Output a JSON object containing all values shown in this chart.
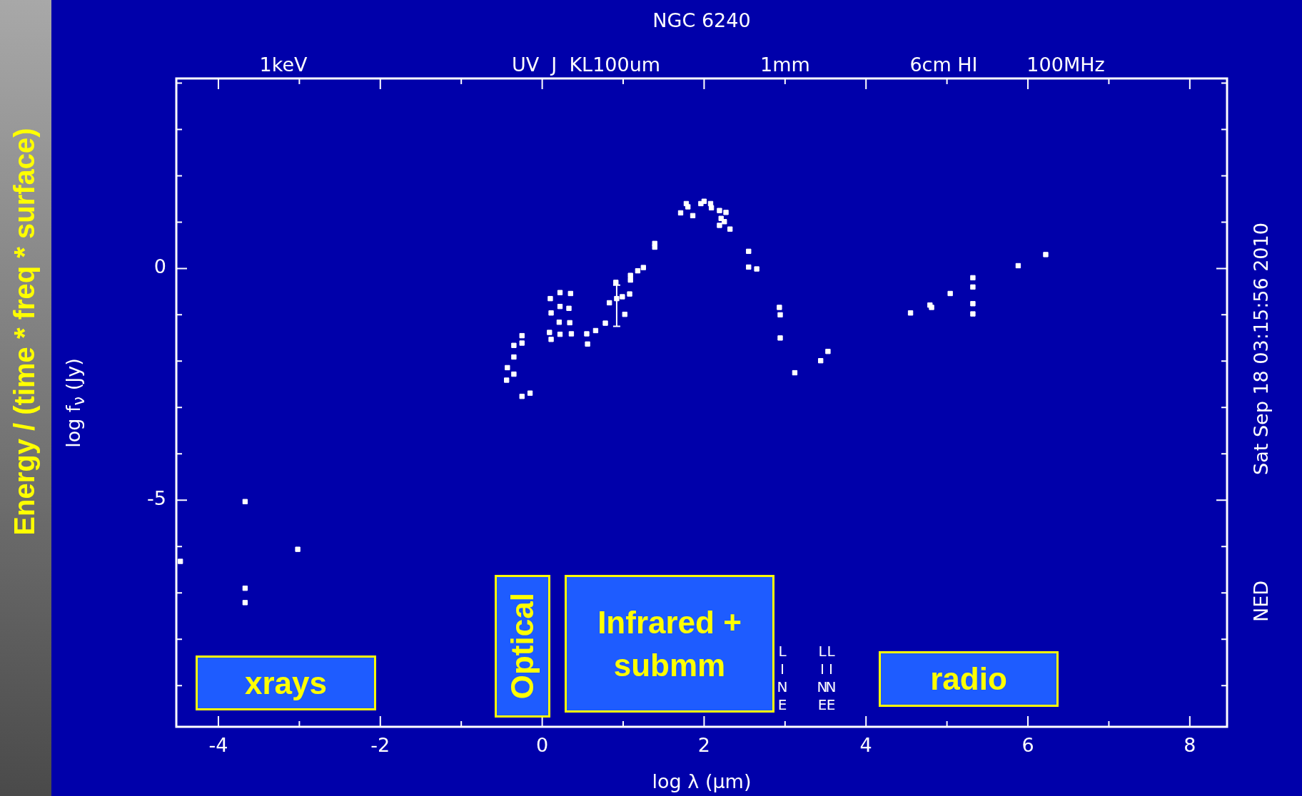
{
  "chart_data": {
    "type": "scatter",
    "title": "NGC 6240",
    "xlabel": "log λ (µm)",
    "ylabel": "log f$_{ν}$ (Jy)",
    "xlim": [
      -4.52,
      8.46
    ],
    "ylim": [
      -9.89,
      4.1
    ],
    "xticks": [
      -4,
      {
        "value": -3,
        "label": null
      },
      -2,
      {
        "value": -1,
        "label": null
      },
      0,
      {
        "value": 1,
        "label": null
      },
      2,
      {
        "value": 3,
        "label": null
      },
      4,
      {
        "value": 5,
        "label": null
      },
      6,
      {
        "value": 7,
        "label": null
      },
      8
    ],
    "yticks": [
      {
        "value": -9,
        "label": null
      },
      {
        "value": -8,
        "label": null
      },
      {
        "value": -7,
        "label": null
      },
      {
        "value": -6,
        "label": null
      },
      -5,
      {
        "value": -4,
        "label": null
      },
      {
        "value": -3,
        "label": null
      },
      {
        "value": -2,
        "label": null
      },
      {
        "value": -1,
        "label": null
      },
      0,
      {
        "value": 1,
        "label": null
      },
      {
        "value": 2,
        "label": null
      },
      {
        "value": 3,
        "label": null
      },
      {
        "value": 4,
        "label": null
      }
    ],
    "marker": "square",
    "series": [
      {
        "color": "#ffffff",
        "x": [
          -4.47,
          -3.67,
          -3.67,
          -3.67,
          -3.02,
          -0.44,
          -0.43,
          -0.35,
          -0.35,
          -0.35,
          -0.25,
          -0.25,
          -0.25,
          -0.15,
          0.1,
          0.11,
          0.09,
          0.11,
          0.22,
          0.22,
          0.21,
          0.22,
          0.35,
          0.33,
          0.34,
          0.36,
          0.55,
          0.56,
          0.66,
          0.78,
          0.83,
          0.92,
          0.91,
          1.02,
          0.99,
          1.08,
          1.09,
          1.09,
          1.18,
          1.25,
          1.39,
          1.39,
          1.78,
          1.71,
          1.8,
          1.86,
          1.96,
          2.0,
          2.08,
          2.09,
          2.19,
          2.27,
          2.21,
          2.25,
          2.19,
          2.32,
          2.55,
          2.55,
          2.65,
          2.93,
          2.94,
          2.94,
          3.12,
          3.44,
          3.53,
          4.55,
          4.79,
          4.81,
          5.04,
          5.32,
          5.32,
          5.32,
          5.32,
          5.88,
          6.22
        ],
        "values": [
          -6.32,
          -5.03,
          -6.9,
          -7.21,
          -6.06,
          -2.41,
          -2.14,
          -2.28,
          -1.91,
          -1.66,
          -1.61,
          -1.45,
          -2.76,
          -2.69,
          -0.65,
          -0.96,
          -1.38,
          -1.53,
          -0.52,
          -0.82,
          -1.16,
          -1.42,
          -0.54,
          -0.86,
          -1.17,
          -1.41,
          -1.41,
          -1.63,
          -1.34,
          -1.18,
          -0.74,
          -0.65,
          -0.3,
          -0.99,
          -0.61,
          -0.55,
          -0.25,
          -0.15,
          -0.05,
          0.02,
          0.46,
          0.54,
          1.4,
          1.2,
          1.33,
          1.14,
          1.4,
          1.45,
          1.4,
          1.31,
          1.25,
          1.21,
          1.08,
          1.01,
          0.93,
          0.85,
          0.37,
          0.03,
          -0.01,
          -0.84,
          -1.0,
          -1.5,
          -2.25,
          -1.99,
          -1.79,
          -0.96,
          -0.79,
          -0.84,
          -0.54,
          -0.2,
          -0.4,
          -0.76,
          -0.98,
          0.06,
          0.3
        ],
        "errors": [
          null,
          null,
          null,
          null,
          null,
          null,
          null,
          null,
          null,
          null,
          null,
          null,
          null,
          null,
          null,
          null,
          null,
          null,
          null,
          null,
          null,
          null,
          null,
          null,
          null,
          null,
          null,
          null,
          null,
          null,
          null,
          [
            -1.25,
            -0.36
          ],
          null,
          null,
          null,
          null,
          null,
          null,
          null,
          null,
          null,
          null,
          null,
          null,
          null,
          null,
          null,
          null,
          null,
          null,
          null,
          null,
          null,
          null,
          null,
          null,
          null,
          null,
          null,
          null,
          null,
          null,
          null,
          null,
          null,
          null,
          null,
          null,
          null,
          null,
          null,
          null,
          null,
          null,
          null
        ]
      }
    ],
    "annotations": [
      "Energy / (time * freq * surface)",
      "xrays",
      "Optical",
      "Infrared + submm",
      "radio",
      "Sat Sep 18 03:15:56 2010",
      "NED",
      "1keV",
      "UV  J  KL100um",
      "1mm",
      "6cm HI",
      "100MHz",
      "LINE",
      "LINE",
      "LINE"
    ]
  }
}
